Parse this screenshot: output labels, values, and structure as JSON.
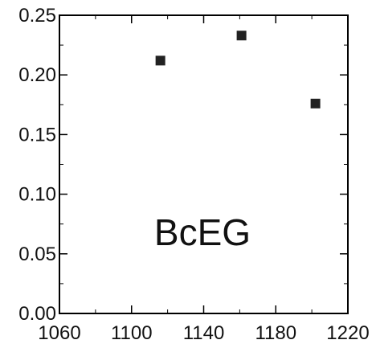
{
  "chart_data": {
    "type": "scatter",
    "title": "",
    "xlabel": "",
    "ylabel": "",
    "annotation": "BcEG",
    "xlim": [
      1060,
      1220
    ],
    "ylim": [
      0.0,
      0.25
    ],
    "x_ticks": [
      1060,
      1100,
      1140,
      1180,
      1220
    ],
    "x_tick_labels": [
      "1060",
      "1100",
      "1140",
      "1180",
      "1220"
    ],
    "y_ticks": [
      0.0,
      0.05,
      0.1,
      0.15,
      0.2,
      0.25
    ],
    "y_tick_labels": [
      "0.00",
      "0.05",
      "0.10",
      "0.15",
      "0.20",
      "0.25"
    ],
    "grid": false,
    "marker": "square",
    "marker_color": "#222222",
    "axis_color": "#000000",
    "series": [
      {
        "points": [
          {
            "x": 1116,
            "y": 0.212
          },
          {
            "x": 1161,
            "y": 0.233
          },
          {
            "x": 1202,
            "y": 0.176
          }
        ]
      }
    ]
  }
}
